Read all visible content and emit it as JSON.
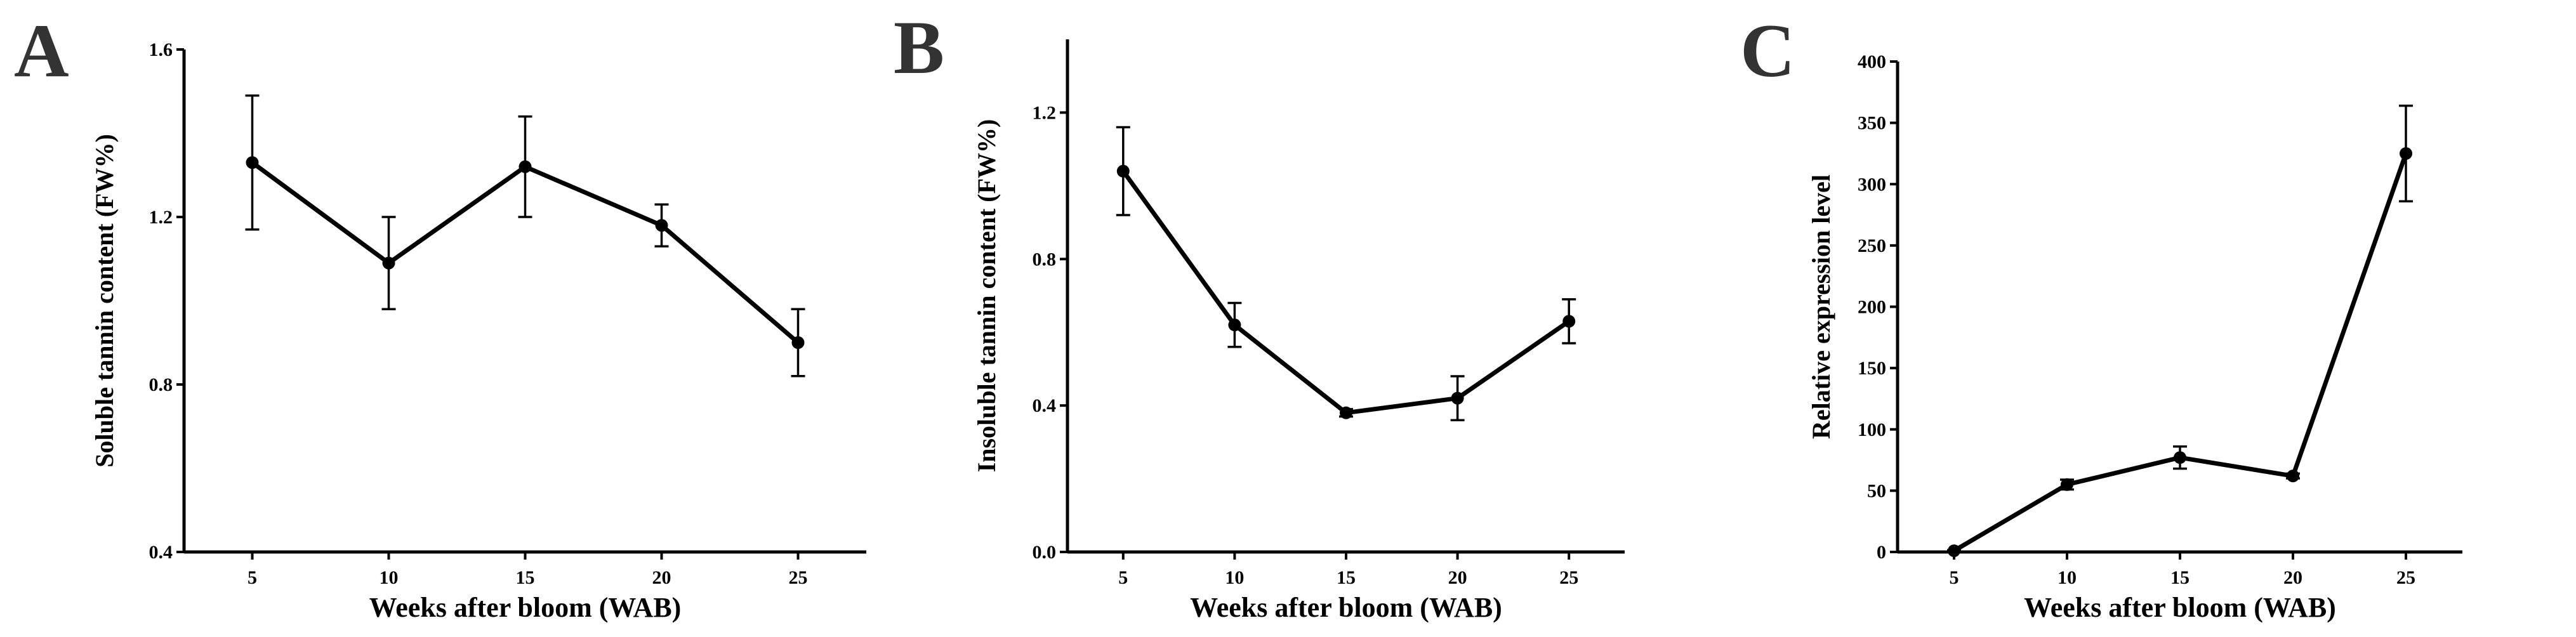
{
  "chart_data": [
    {
      "panel": "A",
      "type": "line",
      "xlabel": "Weeks after bloom (WAB)",
      "ylabel": "Soluble tannin content (FW%)",
      "x": [
        5,
        10,
        15,
        20,
        25
      ],
      "xticks": [
        "5",
        "10",
        "15",
        "20",
        "25"
      ],
      "ylim": [
        0.4,
        1.6
      ],
      "yticks": [
        "0.4",
        "0.8",
        "1.2",
        "1.6"
      ],
      "series": [
        {
          "values": [
            1.33,
            1.09,
            1.32,
            1.18,
            0.9
          ],
          "errors": [
            0.16,
            0.11,
            0.12,
            0.05,
            0.08
          ]
        }
      ],
      "grid": false,
      "legend": "none"
    },
    {
      "panel": "B",
      "type": "line",
      "xlabel": "Weeks after bloom (WAB)",
      "ylabel": "Insoluble tannin content (FW%)",
      "x": [
        5,
        10,
        15,
        20,
        25
      ],
      "xticks": [
        "5",
        "10",
        "15",
        "20",
        "25"
      ],
      "ylim": [
        0.0,
        1.4
      ],
      "yticks": [
        "0.0",
        "0.4",
        "0.8",
        "1.2"
      ],
      "series": [
        {
          "values": [
            1.04,
            0.62,
            0.38,
            0.42,
            0.63
          ],
          "errors": [
            0.12,
            0.06,
            0.01,
            0.06,
            0.06
          ]
        }
      ],
      "grid": false,
      "legend": "none"
    },
    {
      "panel": "C",
      "type": "line",
      "xlabel": "Weeks after bloom (WAB)",
      "ylabel": "Relative expression level",
      "x": [
        5,
        10,
        15,
        20,
        25
      ],
      "xticks": [
        "5",
        "10",
        "15",
        "20",
        "25"
      ],
      "ylim": [
        0,
        400
      ],
      "yticks": [
        "0",
        "50",
        "100",
        "150",
        "200",
        "250",
        "300",
        "350",
        "400"
      ],
      "series": [
        {
          "values": [
            1,
            55,
            77,
            62,
            325
          ],
          "errors": [
            0.5,
            4,
            9,
            2,
            39
          ]
        }
      ],
      "grid": false,
      "legend": "none"
    }
  ]
}
